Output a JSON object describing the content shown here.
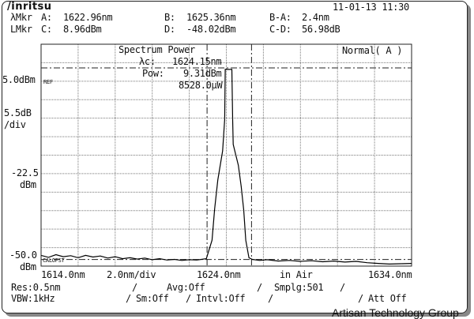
{
  "header": {
    "brand": "/inritsu",
    "datetime": "11-01-13 11:30"
  },
  "markers": {
    "wl_label": "λMkr",
    "a_label": "A:",
    "a_value": "1622.96nm",
    "b_label": "B:",
    "b_value": "1625.36nm",
    "ba_label": "B-A:",
    "ba_value": "2.4nm",
    "lv_label": "LMkr",
    "c_label": "C:",
    "c_value": "8.96dBm",
    "d_label": "D:",
    "d_value": "-48.02dBm",
    "cd_label": "C-D:",
    "cd_value": "56.98dB"
  },
  "plot": {
    "title": "Spectrum Power",
    "mode": "Normal( A )",
    "lc_label": "λc:",
    "lc_value": "1624.15nm",
    "pow_label": "Pow:",
    "pow_dbm": "9.31dBm",
    "pow_uw": "8528.0μW",
    "ref_tag": "REF",
    "offset_tag": "CALOFST"
  },
  "yaxis": {
    "ref": "5.0dBm",
    "scale": "5.5dB",
    "scale_unit": "/div",
    "mid": "-22.5",
    "mid_unit": "dBm",
    "bottom": "-50.0",
    "bottom_unit": "dBm"
  },
  "xaxis": {
    "start": "1614.0nm",
    "span": "2.0nm/div",
    "center": "1624.0nm",
    "medium": "in Air",
    "stop": "1634.0nm"
  },
  "status": {
    "res": "Res:0.5nm",
    "avg": "Avg:Off",
    "smplg": "Smplg:501",
    "vbw": "VBW:1kHz",
    "sm": "Sm:Off",
    "intvl": "Intvl:Off",
    "att": "Att Off",
    "sep": "/"
  },
  "watermark": "Artisan Technology Group",
  "chart_data": {
    "type": "line",
    "xlim": [
      1614.0,
      1634.0
    ],
    "ylim": [
      -50.0,
      16.0
    ],
    "x_div": 2.0,
    "y_ref": 5.0,
    "y_div": 5.5,
    "grid": true,
    "marker_lines": {
      "A": 1622.96,
      "B": 1625.36,
      "C": 8.96,
      "D": -48.02
    },
    "trace": [
      [
        1614,
        -46.8
      ],
      [
        1614.4,
        -47.4
      ],
      [
        1614.8,
        -46.6
      ],
      [
        1615.2,
        -47.2
      ],
      [
        1615.6,
        -46.9
      ],
      [
        1616,
        -47.5
      ],
      [
        1616.4,
        -46.8
      ],
      [
        1616.8,
        -47.3
      ],
      [
        1617.2,
        -47.0
      ],
      [
        1617.6,
        -47.6
      ],
      [
        1618,
        -47.2
      ],
      [
        1618.4,
        -47.8
      ],
      [
        1618.8,
        -47.5
      ],
      [
        1619.2,
        -47.9
      ],
      [
        1619.6,
        -47.6
      ],
      [
        1620,
        -48.1
      ],
      [
        1620.4,
        -47.8
      ],
      [
        1620.8,
        -48.2
      ],
      [
        1621.2,
        -48.0
      ],
      [
        1621.6,
        -48.3
      ],
      [
        1622,
        -48.1
      ],
      [
        1622.4,
        -48.2
      ],
      [
        1622.92,
        -47.8
      ],
      [
        1623.23,
        -42.3
      ],
      [
        1623.37,
        -33.0
      ],
      [
        1623.54,
        -24.4
      ],
      [
        1623.8,
        -15.7
      ],
      [
        1623.91,
        -6.4
      ],
      [
        1623.94,
        8.5
      ],
      [
        1624.3,
        8.5
      ],
      [
        1624.34,
        -6.4
      ],
      [
        1624.37,
        -13.8
      ],
      [
        1624.65,
        -20.0
      ],
      [
        1624.8,
        -26.3
      ],
      [
        1624.94,
        -33.3
      ],
      [
        1625.05,
        -42.3
      ],
      [
        1625.22,
        -47.5
      ],
      [
        1625.4,
        -48.0
      ],
      [
        1625.8,
        -48.3
      ],
      [
        1626.2,
        -48.1
      ],
      [
        1626.8,
        -48.5
      ],
      [
        1627.4,
        -48.3
      ],
      [
        1628,
        -48.6
      ],
      [
        1628.6,
        -48.4
      ],
      [
        1629.2,
        -48.7
      ],
      [
        1629.8,
        -48.5
      ],
      [
        1630.4,
        -48.8
      ],
      [
        1631,
        -48.6
      ],
      [
        1631.6,
        -49.0
      ],
      [
        1632.2,
        -49.2
      ],
      [
        1632.8,
        -49.4
      ],
      [
        1633.4,
        -49.3
      ],
      [
        1634,
        -49.2
      ]
    ]
  }
}
